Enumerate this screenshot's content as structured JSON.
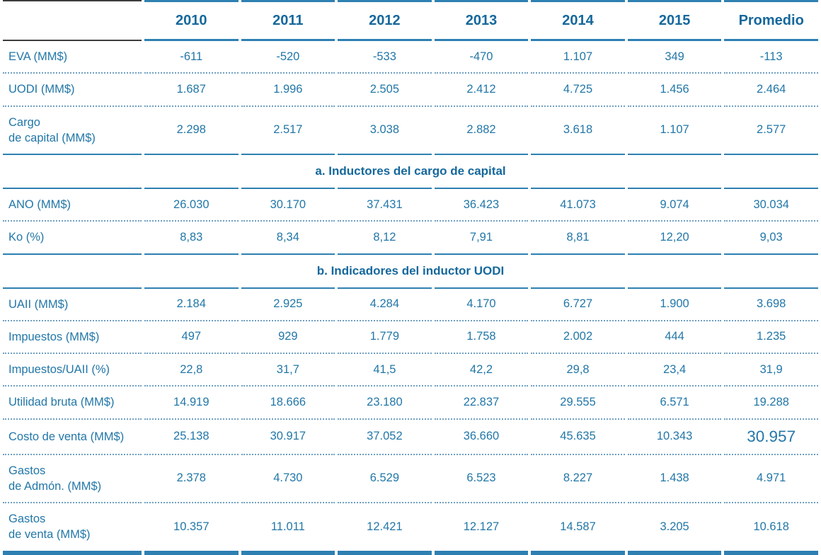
{
  "chart_data": {
    "type": "table",
    "columns": [
      "2010",
      "2011",
      "2012",
      "2013",
      "2014",
      "2015",
      "Promedio"
    ],
    "corner_label": "",
    "sections": [
      {
        "title": null,
        "rows": [
          {
            "label": "EVA (MM$)",
            "values": [
              "-611",
              "-520",
              "-533",
              "-470",
              "1.107",
              "349",
              "-113"
            ]
          },
          {
            "label": "UODI (MM$)",
            "values": [
              "1.687",
              "1.996",
              "2.505",
              "2.412",
              "4.725",
              "1.456",
              "2.464"
            ]
          },
          {
            "label": "Cargo\nde capital (MM$)",
            "values": [
              "2.298",
              "2.517",
              "3.038",
              "2.882",
              "3.618",
              "1.107",
              "2.577"
            ]
          }
        ]
      },
      {
        "title": "a. Inductores del cargo de capital",
        "rows": [
          {
            "label": "ANO (MM$)",
            "values": [
              "26.030",
              "30.170",
              "37.431",
              "36.423",
              "41.073",
              "9.074",
              "30.034"
            ]
          },
          {
            "label": "Ko (%)",
            "values": [
              "8,83",
              "8,34",
              "8,12",
              "7,91",
              "8,81",
              "12,20",
              "9,03"
            ]
          }
        ]
      },
      {
        "title": "b. Indicadores del inductor UODI",
        "rows": [
          {
            "label": "UAII (MM$)",
            "values": [
              "2.184",
              "2.925",
              "4.284",
              "4.170",
              "6.727",
              "1.900",
              "3.698"
            ]
          },
          {
            "label": "Impuestos (MM$)",
            "values": [
              "497",
              "929",
              "1.779",
              "1.758",
              "2.002",
              "444",
              "1.235"
            ]
          },
          {
            "label": "Impuestos/UAII (%)",
            "values": [
              "22,8",
              "31,7",
              "41,5",
              "42,2",
              "29,8",
              "23,4",
              "31,9"
            ]
          },
          {
            "label": "Utilidad bruta (MM$)",
            "values": [
              "14.919",
              "18.666",
              "23.180",
              "22.837",
              "29.555",
              "6.571",
              "19.288"
            ]
          },
          {
            "label": "Costo de venta (MM$)",
            "values": [
              "25.138",
              "30.917",
              "37.052",
              "36.660",
              "45.635",
              "10.343",
              "30.957"
            ],
            "big_last_value": true
          },
          {
            "label": "Gastos\nde Admón. (MM$)",
            "values": [
              "2.378",
              "4.730",
              "6.529",
              "6.523",
              "8.227",
              "1.438",
              "4.971"
            ]
          },
          {
            "label": "Gastos\nde venta (MM$)",
            "values": [
              "10.357",
              "11.011",
              "12.421",
              "12.127",
              "14.587",
              "3.205",
              "10.618"
            ]
          }
        ]
      }
    ],
    "layout": {
      "grid": "horizontal rules only, segmented at column gaps",
      "row_separator": "dotted",
      "section_separator": "solid",
      "legend_position": "none"
    },
    "colors": {
      "text_blue": "#2277a8",
      "header_blue": "#15689c",
      "line_blue": "#2e80b2",
      "dark_line": "#3d3d3d",
      "dot_blue": "#6fa0c2",
      "background": "#ffffff"
    }
  }
}
